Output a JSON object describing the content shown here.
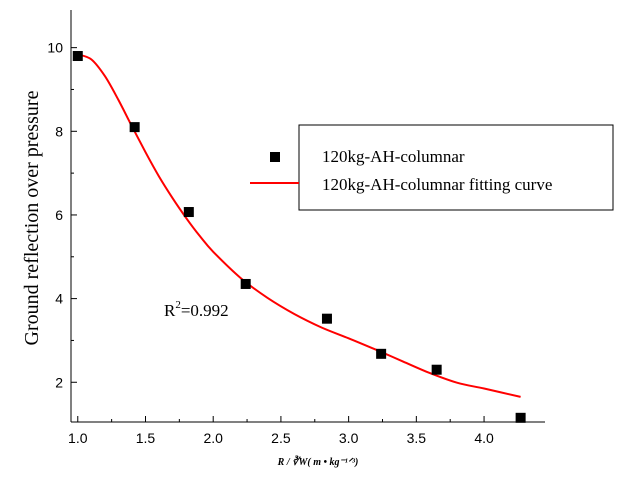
{
  "chart_data": {
    "type": "scatter",
    "ylabel": "Ground reflection over pressure",
    "xlabel": "R / ∛W( m • kg⁻¹ᐟ³)",
    "xlim": [
      0.95,
      4.45
    ],
    "ylim": [
      1.05,
      10.9
    ],
    "x_ticks": [
      "1.0",
      "1.5",
      "2.0",
      "2.5",
      "3.0",
      "3.5",
      "4.0"
    ],
    "y_ticks": [
      "2",
      "4",
      "6",
      "8",
      "10"
    ],
    "grid": false,
    "legend_position": "top-right",
    "annotation": {
      "text_main": "R",
      "text_sup": "2",
      "text_rest": "=0.992"
    },
    "series": [
      {
        "name": "120kg-AH-columnar",
        "kind": "points",
        "color": "#000000",
        "x": [
          1.0,
          1.42,
          1.82,
          2.24,
          2.84,
          3.24,
          3.65,
          4.27
        ],
        "y": [
          9.8,
          8.1,
          6.07,
          4.35,
          3.52,
          2.68,
          2.3,
          1.15
        ]
      },
      {
        "name": "120kg-AH-columnar fitting curve",
        "kind": "line",
        "color": "#ff0000",
        "x": [
          1.0,
          1.1,
          1.2,
          1.3,
          1.4,
          1.5,
          1.6,
          1.7,
          1.8,
          1.9,
          2.0,
          2.2,
          2.4,
          2.6,
          2.8,
          3.0,
          3.2,
          3.4,
          3.6,
          3.8,
          4.0,
          4.27
        ],
        "y": [
          9.84,
          9.72,
          9.32,
          8.75,
          8.12,
          7.5,
          6.92,
          6.4,
          5.93,
          5.5,
          5.12,
          4.5,
          4.02,
          3.63,
          3.31,
          3.05,
          2.78,
          2.5,
          2.22,
          1.99,
          1.85,
          1.65
        ]
      }
    ]
  }
}
